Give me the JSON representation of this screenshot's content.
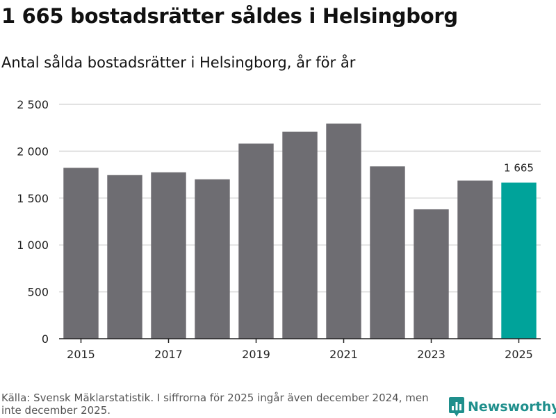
{
  "title": "1 665 bostadsrätter såldes i Helsingborg",
  "subtitle": "Antal sålda bostadsrätter i Helsingborg, år för år",
  "footer": {
    "source": "Källa: Svensk Mäklarstatistik. I siffrorna för 2025 ingår även december 2024, men inte december 2025."
  },
  "brand": {
    "name": "Newsworthy",
    "icon": "bar-chart-icon"
  },
  "colors": {
    "bar": "#6e6d72",
    "highlight": "#00a39a",
    "grid": "#d9d9d9",
    "axis": "#222222",
    "brand": "#1f8f8c"
  },
  "chart_data": {
    "type": "bar",
    "title": "1 665 bostadsrätter såldes i Helsingborg",
    "subtitle": "Antal sålda bostadsrätter i Helsingborg, år för år",
    "categories": [
      "2015",
      "2016",
      "2017",
      "2018",
      "2019",
      "2020",
      "2021",
      "2022",
      "2023",
      "2024",
      "2025"
    ],
    "values": [
      1823,
      1745,
      1775,
      1700,
      2081,
      2207,
      2295,
      1838,
      1380,
      1687,
      1665
    ],
    "x_tick_labels": [
      "2015",
      "2017",
      "2019",
      "2021",
      "2023",
      "2025"
    ],
    "y_ticks": [
      0,
      500,
      1000,
      1500,
      2000,
      2500
    ],
    "y_tick_labels": [
      "0",
      "500",
      "1 000",
      "1 500",
      "2 000",
      "2 500"
    ],
    "ylim": [
      0,
      2500
    ],
    "grid": true,
    "highlight_category": "2025",
    "data_labels": [
      {
        "category": "2025",
        "text": "1 665"
      }
    ],
    "xlabel": "",
    "ylabel": ""
  }
}
